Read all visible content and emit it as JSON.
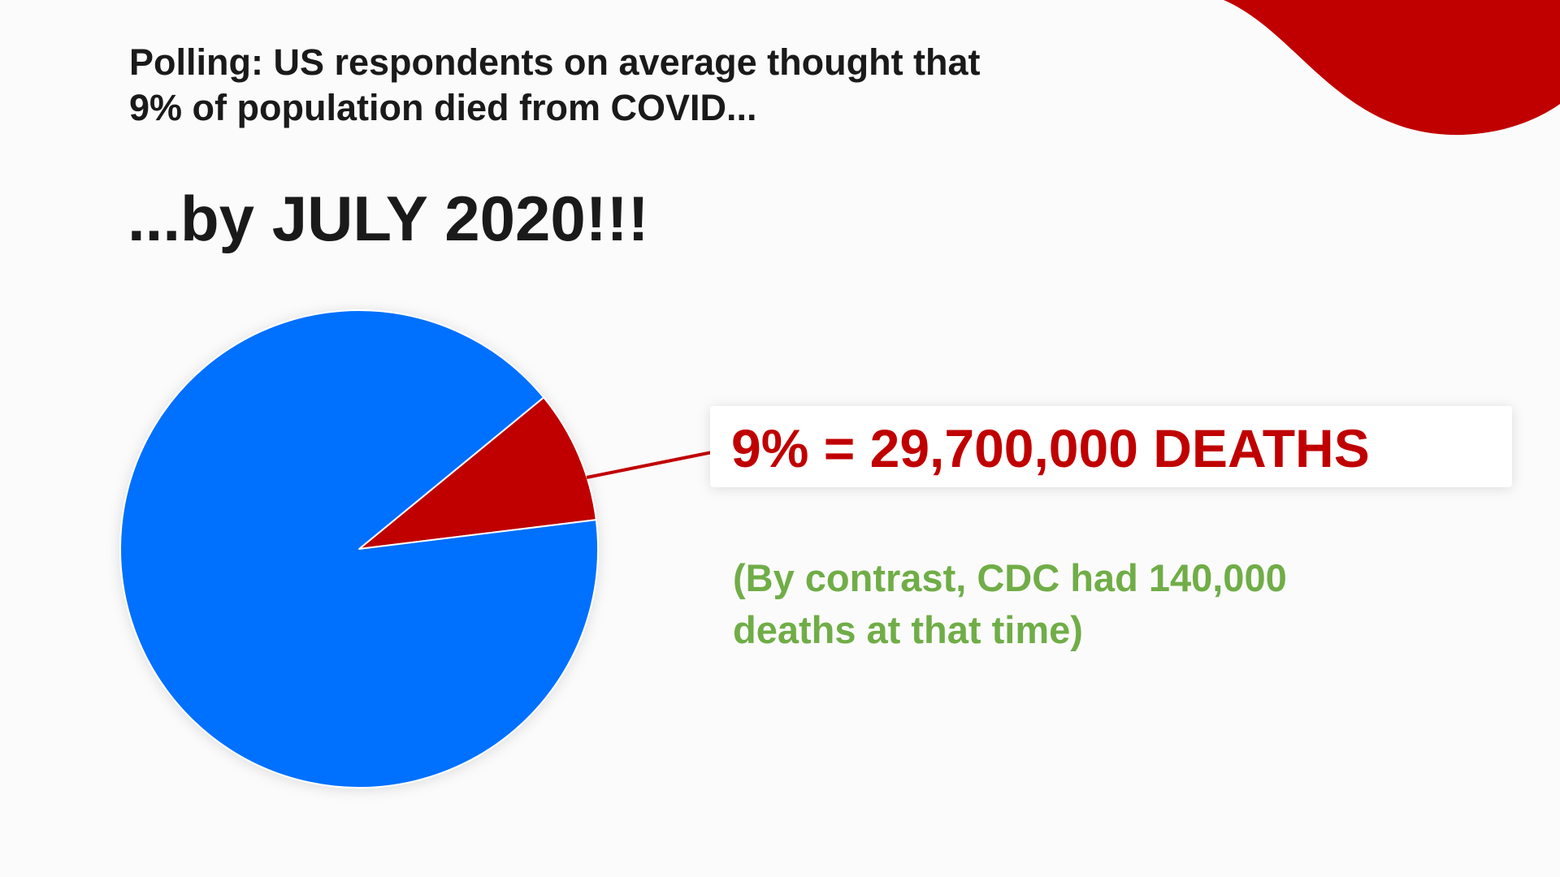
{
  "chart_data": {
    "type": "pie",
    "title": [
      "Polling: US respondents on average thought that",
      "9% of population died from COVID..."
    ],
    "subtitle": "...by JULY 2020!!!",
    "values": [
      9,
      91
    ],
    "colors": [
      "#c00000",
      "#0070ff"
    ],
    "callout": "9% = 29,700,000 DEATHS",
    "note": [
      "(By contrast, CDC had 140,000",
      "deaths at that time)"
    ]
  }
}
